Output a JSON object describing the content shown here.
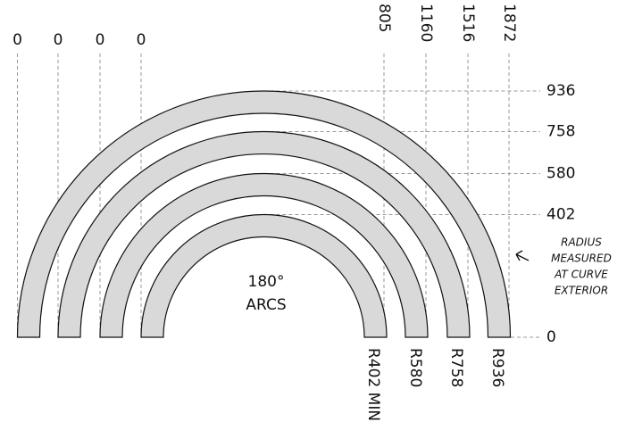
{
  "top_left_labels": [
    "0",
    "0",
    "0",
    "0"
  ],
  "top_right_labels": [
    "805",
    "1160",
    "1516",
    "1872"
  ],
  "right_labels": [
    "936",
    "758",
    "580",
    "402",
    "0"
  ],
  "bottom_labels": [
    "R402 MIN",
    "R580",
    "R758",
    "R936"
  ],
  "center_label": [
    "180°",
    "ARCS"
  ],
  "note": [
    "RADIUS",
    "MEASURED",
    "AT CURVE",
    "EXTERIOR"
  ]
}
